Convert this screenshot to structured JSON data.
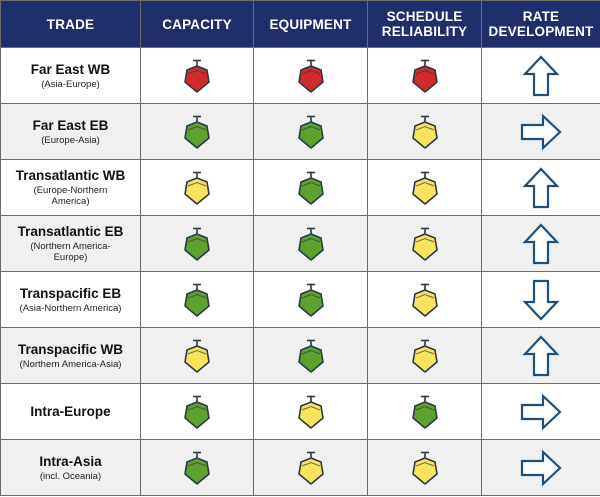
{
  "colors": {
    "header_bg": "#1f2f6b",
    "red": "#d12a2a",
    "green": "#5ea12e",
    "yellow": "#f8e45c",
    "arrow_stroke": "#1f4e79"
  },
  "headers": {
    "trade": "TRADE",
    "capacity": "CAPACITY",
    "equipment": "EQUIPMENT",
    "schedule": "SCHEDULE\nRELIABILITY",
    "rate": "RATE\nDEVELOPMENT"
  },
  "rows": [
    {
      "name": "Far East WB",
      "sub": "(Asia-Europe)",
      "capacity": "red",
      "equipment": "red",
      "schedule": "red",
      "rate": "up"
    },
    {
      "name": "Far East EB",
      "sub": "(Europe-Asia)",
      "capacity": "green",
      "equipment": "green",
      "schedule": "yellow",
      "rate": "right"
    },
    {
      "name": "Transatlantic WB",
      "sub": "(Europe-Northern\nAmerica)",
      "capacity": "yellow",
      "equipment": "green",
      "schedule": "yellow",
      "rate": "up"
    },
    {
      "name": "Transatlantic EB",
      "sub": "(Northern America-\nEurope)",
      "capacity": "green",
      "equipment": "green",
      "schedule": "yellow",
      "rate": "up"
    },
    {
      "name": "Transpacific EB",
      "sub": "(Asia-Northern America)",
      "capacity": "green",
      "equipment": "green",
      "schedule": "yellow",
      "rate": "down"
    },
    {
      "name": "Transpacific WB",
      "sub": "(Northern America-Asia)",
      "capacity": "yellow",
      "equipment": "green",
      "schedule": "yellow",
      "rate": "up"
    },
    {
      "name": "Intra-Europe",
      "sub": "",
      "capacity": "green",
      "equipment": "yellow",
      "schedule": "green",
      "rate": "right"
    },
    {
      "name": "Intra-Asia",
      "sub": "(incl. Oceania)",
      "capacity": "green",
      "equipment": "yellow",
      "schedule": "yellow",
      "rate": "right"
    }
  ]
}
